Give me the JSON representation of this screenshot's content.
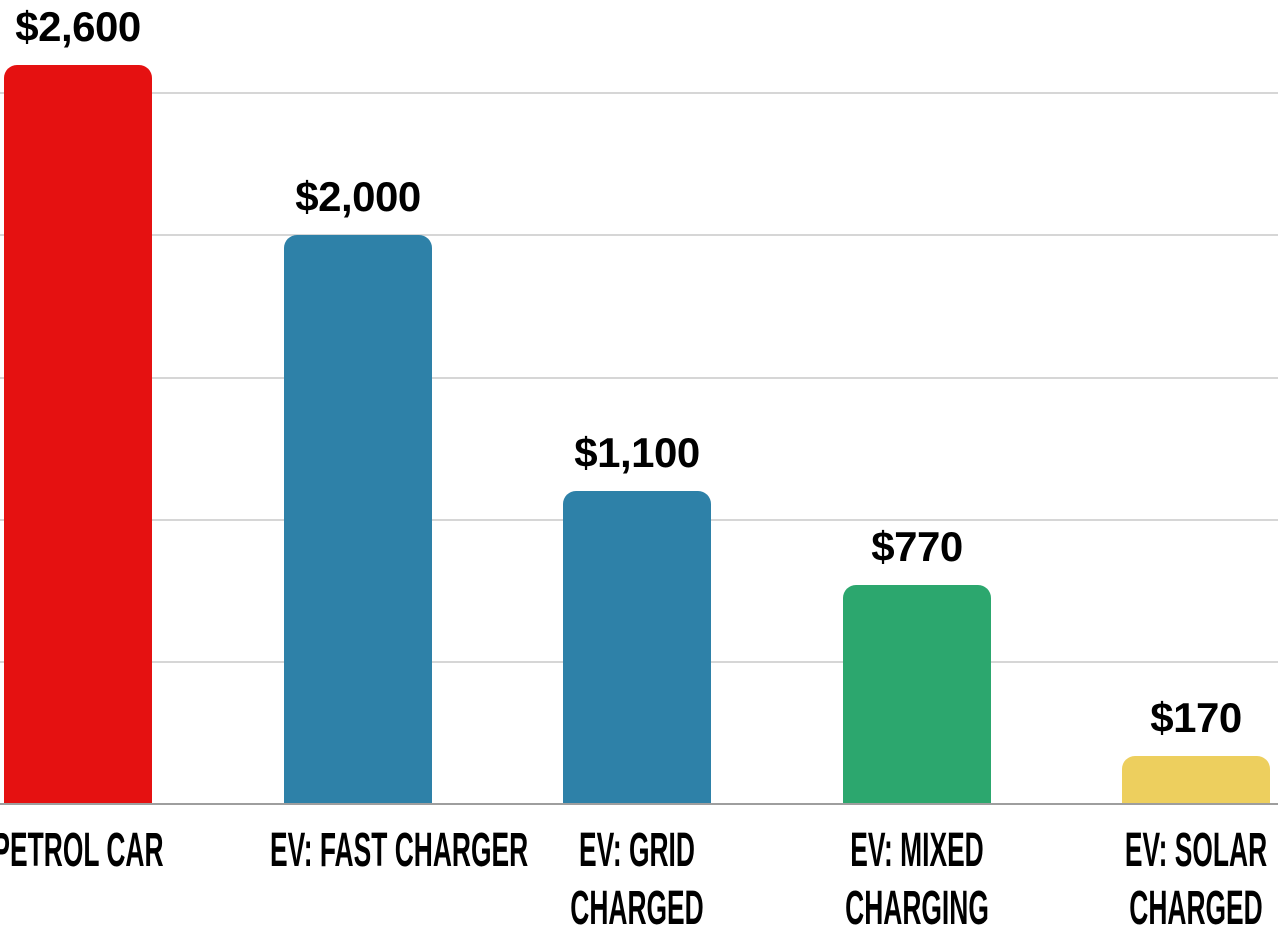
{
  "chart_data": {
    "type": "bar",
    "title": "",
    "xlabel": "",
    "ylabel": "",
    "categories": [
      "PETROL CAR",
      "EV: FAST CHARGER",
      "EV: GRID CHARGED",
      "EV: MIXED CHARGING",
      "EV: SOLAR CHARGED"
    ],
    "category_lines": [
      [
        "PETROL CAR"
      ],
      [
        "EV: FAST CHARGER"
      ],
      [
        "EV: GRID",
        "CHARGED"
      ],
      [
        "EV: MIXED",
        "CHARGING"
      ],
      [
        "EV: SOLAR",
        "CHARGED"
      ]
    ],
    "values": [
      2600,
      2000,
      1100,
      770,
      170
    ],
    "value_labels": [
      "$2,600",
      "$2,000",
      "$1,100",
      "$770",
      "$170"
    ],
    "bar_colors": [
      "#e51111",
      "#2e81a8",
      "#2e81a8",
      "#2ca76e",
      "#edcf5e"
    ],
    "ylim": [
      0,
      2830
    ],
    "gridline_values": [
      500,
      1000,
      1500,
      2000,
      2500
    ],
    "grid": true,
    "legend": false,
    "y_tick_labels_visible": false
  },
  "colors": {
    "gridline": "#d6d6d6",
    "baseline": "#9e9e9e",
    "label_text": "#000000",
    "background": "#ffffff"
  }
}
